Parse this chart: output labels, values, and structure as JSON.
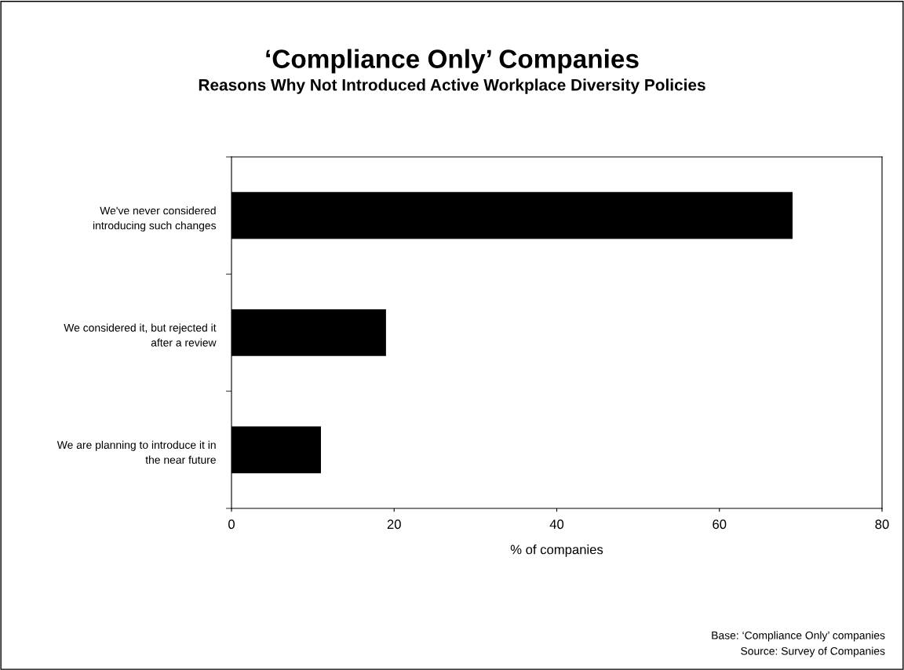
{
  "chart_data": {
    "type": "bar",
    "orientation": "horizontal",
    "title": "‘Compliance Only’ Companies",
    "subtitle": "Reasons Why Not Introduced Active Workplace Diversity Policies",
    "categories": [
      "We've never considered\nintroducing such changes",
      "We considered it, but rejected it\nafter a review",
      "We are planning to introduce it in\nthe near future"
    ],
    "values": [
      69,
      19,
      11
    ],
    "color": "#000000",
    "xlabel": "% of companies",
    "xlim": [
      0,
      80
    ],
    "xticks": [
      0,
      20,
      40,
      60,
      80
    ],
    "grid": false,
    "legend": false,
    "annotations": [
      "Base: ‘Compliance Only’ companies",
      "Source: Survey of Companies"
    ]
  }
}
